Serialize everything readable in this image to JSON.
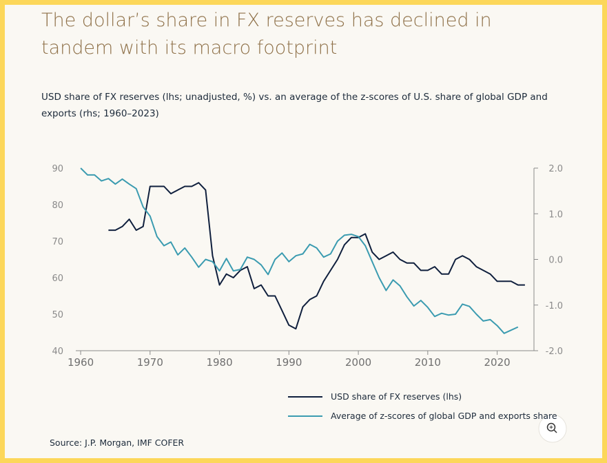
{
  "chart_data": {
    "type": "line",
    "title": "The dollar’s share in FX reserves has declined in tandem with its macro footprint",
    "subtitle": "USD share of FX reserves (lhs; unadjusted, %) vs. an average of the z-scores of U.S. share of global GDP and exports (rhs; 1960–2023)",
    "source": "Source: J.P. Morgan, IMF COFER",
    "xlim": [
      1959.3,
      2025.3
    ],
    "xticks": [
      1960,
      1970,
      1980,
      1990,
      2000,
      2010,
      2020
    ],
    "ylim": [
      40,
      90
    ],
    "yticks": [
      40,
      50,
      60,
      70,
      80,
      90
    ],
    "y2lim": [
      -2,
      2
    ],
    "y2ticks": [
      {
        "value": 2,
        "label": "2.0"
      },
      {
        "value": 1,
        "label": "1.0"
      },
      {
        "value": 0,
        "label": "0.0"
      },
      {
        "value": -1,
        "label": "-1.0"
      },
      {
        "value": -2,
        "label": "-2.0"
      }
    ],
    "series": [
      {
        "name": "USD share of FX reserves (lhs)",
        "color": "#0f1f3d",
        "x": [
          1964,
          1965,
          1966,
          1967,
          1968,
          1969,
          1970,
          1971,
          1972,
          1973,
          1974,
          1975,
          1976,
          1977,
          1978,
          1979,
          1980,
          1981,
          1982,
          1983,
          1984,
          1985,
          1986,
          1987,
          1988,
          1989,
          1990,
          1991,
          1992,
          1993,
          1994,
          1995,
          1996,
          1997,
          1998,
          1999,
          2000,
          2001,
          2002,
          2003,
          2004,
          2005,
          2006,
          2007,
          2008,
          2009,
          2010,
          2011,
          2012,
          2013,
          2014,
          2015,
          2016,
          2017,
          2018,
          2019,
          2020,
          2021,
          2022,
          2023,
          2024
        ],
        "values": [
          73,
          73,
          74,
          76,
          73,
          74,
          85,
          85,
          85,
          83,
          84,
          85,
          85,
          86,
          84,
          66,
          58,
          61,
          60,
          62,
          63,
          57,
          58,
          55,
          55,
          51,
          47,
          46,
          52,
          54,
          55,
          59,
          62,
          65,
          69,
          71,
          71,
          72,
          67,
          65,
          66,
          67,
          65,
          64,
          64,
          62,
          62,
          63,
          61,
          61,
          65,
          66,
          65,
          63,
          62,
          61,
          59,
          59,
          59,
          58,
          58
        ]
      },
      {
        "name": "Average of z-scores of global GDP and exports share",
        "color": "#3a9bb0",
        "axis": "y2",
        "x": [
          1960,
          1961,
          1962,
          1963,
          1964,
          1965,
          1966,
          1967,
          1968,
          1969,
          1970,
          1971,
          1972,
          1973,
          1974,
          1975,
          1976,
          1977,
          1978,
          1979,
          1980,
          1981,
          1982,
          1983,
          1984,
          1985,
          1986,
          1987,
          1988,
          1989,
          1990,
          1991,
          1992,
          1993,
          1994,
          1995,
          1996,
          1997,
          1998,
          1999,
          2000,
          2001,
          2002,
          2003,
          2004,
          2005,
          2006,
          2007,
          2008,
          2009,
          2010,
          2011,
          2012,
          2013,
          2014,
          2015,
          2016,
          2017,
          2018,
          2019,
          2020,
          2021,
          2022,
          2023
        ],
        "values": [
          2.0,
          1.85,
          1.85,
          1.72,
          1.77,
          1.65,
          1.76,
          1.65,
          1.55,
          1.15,
          0.95,
          0.5,
          0.3,
          0.38,
          0.1,
          0.25,
          0.05,
          -0.17,
          0.0,
          -0.05,
          -0.25,
          0.02,
          -0.25,
          -0.22,
          0.05,
          0.0,
          -0.12,
          -0.33,
          0.0,
          0.14,
          -0.05,
          0.08,
          0.12,
          0.33,
          0.25,
          0.05,
          0.12,
          0.4,
          0.53,
          0.55,
          0.5,
          0.3,
          -0.05,
          -0.4,
          -0.68,
          -0.45,
          -0.58,
          -0.82,
          -1.02,
          -0.9,
          -1.05,
          -1.25,
          -1.18,
          -1.22,
          -1.2,
          -0.98,
          -1.03,
          -1.2,
          -1.35,
          -1.32,
          -1.45,
          -1.62,
          -1.55,
          -1.48
        ]
      }
    ]
  }
}
